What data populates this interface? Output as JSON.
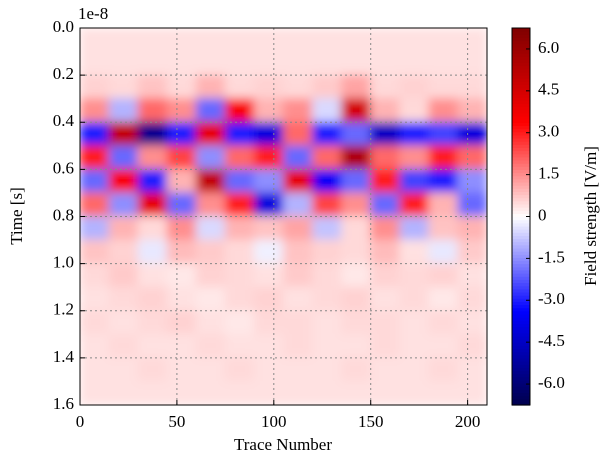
{
  "chart_data": {
    "type": "heatmap",
    "xlabel": "Trace Number",
    "ylabel": "Time [s]",
    "y_offset_text": "1e-8",
    "colorbar_label": "Field strength [V/m]",
    "x": [
      7.5,
      22.5,
      37.5,
      52.5,
      67.5,
      82.5,
      97.5,
      112.5,
      127.5,
      142.5,
      157.5,
      172.5,
      187.5,
      202.5
    ],
    "y": [
      0.05,
      0.15,
      0.25,
      0.35,
      0.45,
      0.55,
      0.65,
      0.75,
      0.85,
      0.95,
      1.05,
      1.15,
      1.25,
      1.35,
      1.45,
      1.55
    ],
    "z": [
      [
        0.4,
        0.4,
        0.4,
        0.4,
        0.4,
        0.4,
        0.4,
        0.4,
        0.4,
        0.4,
        0.4,
        0.4,
        0.4,
        0.4
      ],
      [
        0.4,
        0.4,
        0.4,
        0.4,
        0.4,
        0.4,
        0.4,
        0.4,
        0.4,
        0.4,
        0.4,
        0.4,
        0.4,
        0.4
      ],
      [
        0.6,
        0.5,
        0.8,
        0.5,
        1.0,
        0.5,
        0.6,
        0.5,
        0.7,
        1.2,
        0.5,
        0.6,
        0.5,
        0.5
      ],
      [
        1.5,
        -1.0,
        2.0,
        1.5,
        -2.0,
        3.5,
        1.0,
        1.5,
        -0.5,
        4.5,
        1.0,
        0.5,
        1.5,
        1.0
      ],
      [
        -3.0,
        5.0,
        -5.5,
        -3.0,
        4.0,
        -3.0,
        -4.0,
        2.0,
        -3.0,
        -2.0,
        -4.5,
        -3.0,
        -2.5,
        -4.0
      ],
      [
        3.0,
        -2.0,
        1.5,
        2.5,
        -1.5,
        2.0,
        3.0,
        -2.0,
        2.0,
        5.5,
        2.0,
        1.5,
        3.0,
        2.0
      ],
      [
        -2.0,
        3.5,
        -3.0,
        1.0,
        5.0,
        -2.0,
        -1.5,
        4.0,
        -3.5,
        -2.0,
        3.0,
        -2.5,
        -3.0,
        -1.5
      ],
      [
        2.0,
        -1.5,
        4.0,
        -2.0,
        1.5,
        3.0,
        -4.0,
        -1.0,
        2.5,
        1.5,
        -2.0,
        3.0,
        1.0,
        -2.0
      ],
      [
        -1.0,
        1.0,
        0.5,
        1.5,
        -0.5,
        1.0,
        0.8,
        1.2,
        -0.8,
        0.5,
        1.5,
        -1.0,
        0.8,
        1.0
      ],
      [
        0.8,
        0.6,
        -0.3,
        0.9,
        0.7,
        0.5,
        -0.2,
        0.8,
        0.6,
        0.5,
        0.9,
        0.4,
        -0.3,
        0.7
      ],
      [
        0.5,
        0.7,
        0.4,
        0.3,
        0.6,
        0.5,
        0.4,
        0.7,
        0.5,
        0.3,
        0.6,
        0.5,
        0.6,
        0.4
      ],
      [
        0.4,
        0.5,
        0.6,
        0.4,
        0.3,
        0.5,
        0.6,
        0.4,
        0.5,
        0.6,
        0.4,
        0.5,
        0.3,
        0.5
      ],
      [
        0.5,
        0.4,
        0.5,
        0.6,
        0.4,
        0.3,
        0.5,
        0.5,
        0.4,
        0.5,
        0.5,
        0.4,
        0.5,
        0.4
      ],
      [
        0.4,
        0.5,
        0.4,
        0.4,
        0.5,
        0.4,
        0.4,
        0.5,
        0.4,
        0.4,
        0.5,
        0.4,
        0.4,
        0.5
      ],
      [
        0.4,
        0.4,
        0.5,
        0.4,
        0.4,
        0.5,
        0.4,
        0.4,
        0.4,
        0.5,
        0.4,
        0.4,
        0.5,
        0.4
      ],
      [
        0.4,
        0.4,
        0.4,
        0.4,
        0.4,
        0.4,
        0.4,
        0.4,
        0.4,
        0.4,
        0.4,
        0.4,
        0.4,
        0.4
      ]
    ],
    "xlim": [
      0,
      210
    ],
    "ylim": [
      1.6,
      0
    ],
    "xticks": [
      0,
      50,
      100,
      150,
      200
    ],
    "yticks": [
      {
        "value": 0,
        "label": "0.0"
      },
      0.2,
      0.4,
      0.6,
      0.8,
      {
        "value": 1,
        "label": "1.0"
      },
      1.2,
      1.4,
      1.6
    ],
    "clim": [
      -6.75,
      6.75
    ],
    "cticks": [
      {
        "value": 6,
        "label": "6.0"
      },
      4.5,
      {
        "value": 3,
        "label": "3.0"
      },
      1.5,
      0,
      -1.5,
      {
        "value": -3,
        "label": "-3.0"
      },
      -4.5,
      {
        "value": -6,
        "label": "-6.0"
      }
    ],
    "colormap": "seismic",
    "grid": true
  }
}
